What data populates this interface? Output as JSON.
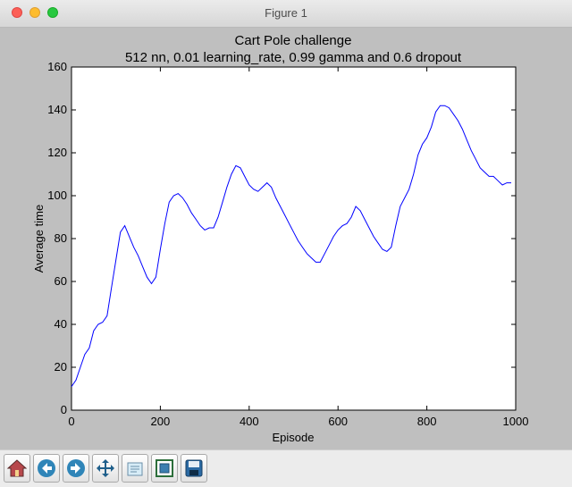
{
  "window": {
    "title": "Figure 1"
  },
  "toolbar": {
    "buttons": [
      {
        "name": "home",
        "icon": "home-icon"
      },
      {
        "name": "back",
        "icon": "back-arrow-icon"
      },
      {
        "name": "forward",
        "icon": "forward-arrow-icon"
      },
      {
        "name": "pan",
        "icon": "move-icon"
      },
      {
        "name": "configure-subplots",
        "icon": "subplots-icon"
      },
      {
        "name": "zoom-to-rect",
        "icon": "zoom-rect-icon"
      },
      {
        "name": "save",
        "icon": "save-icon"
      }
    ]
  },
  "chart_data": {
    "type": "line",
    "title": "Cart Pole challenge",
    "subtitle": "512 nn, 0.01 learning_rate, 0.99 gamma and 0.6 dropout",
    "xlabel": "Episode",
    "ylabel": "Average time",
    "xlim": [
      0,
      1000
    ],
    "ylim": [
      0,
      160
    ],
    "xticks": [
      "0",
      "200",
      "400",
      "600",
      "800",
      "1000"
    ],
    "yticks": [
      "0",
      "20",
      "40",
      "60",
      "80",
      "100",
      "120",
      "140",
      "160"
    ],
    "grid": false,
    "line_color": "#0000ff",
    "series": [
      {
        "x": [
          0,
          10,
          20,
          30,
          40,
          50,
          60,
          70,
          80,
          90,
          100,
          110,
          120,
          130,
          140,
          150,
          160,
          170,
          180,
          190,
          200,
          210,
          220,
          230,
          240,
          250,
          260,
          270,
          280,
          290,
          300,
          310,
          320,
          330,
          340,
          350,
          360,
          370,
          380,
          390,
          400,
          410,
          420,
          430,
          440,
          450,
          460,
          470,
          480,
          490,
          500,
          510,
          520,
          530,
          540,
          550,
          560,
          570,
          580,
          590,
          600,
          610,
          620,
          630,
          640,
          650,
          660,
          670,
          680,
          690,
          700,
          710,
          720,
          730,
          740,
          750,
          760,
          770,
          780,
          790,
          800,
          810,
          820,
          830,
          840,
          850,
          860,
          870,
          880,
          890,
          900,
          910,
          920,
          930,
          940,
          950,
          960,
          970,
          980,
          990
        ],
        "values": [
          11,
          14,
          20,
          26,
          29,
          37,
          40,
          41,
          44,
          57,
          70,
          83,
          86,
          81,
          76,
          72,
          67,
          62,
          59,
          62,
          75,
          87,
          97,
          100,
          101,
          99,
          96,
          92,
          89,
          86,
          84,
          85,
          85,
          90,
          97,
          104,
          110,
          114,
          113,
          109,
          105,
          103,
          102,
          104,
          106,
          104,
          99,
          95,
          91,
          87,
          83,
          79,
          76,
          73,
          71,
          69,
          69,
          73,
          77,
          81,
          84,
          86,
          87,
          90,
          95,
          93,
          89,
          85,
          81,
          78,
          75,
          74,
          76,
          86,
          95,
          99,
          103,
          110,
          119,
          124,
          127,
          132,
          139,
          142,
          142,
          141,
          138,
          135,
          131,
          126,
          121,
          117,
          113,
          111,
          109,
          109,
          107,
          105,
          106,
          106
        ]
      }
    ]
  }
}
